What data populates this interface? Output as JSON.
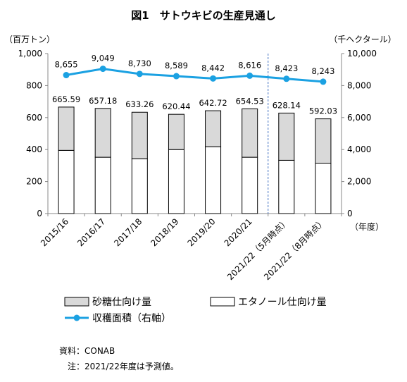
{
  "chart_data": {
    "type": "bar",
    "title": "図1　サトウキビの生産見通し",
    "left_axis_unit": "（百万トン）",
    "right_axis_unit": "（千ヘクタール）",
    "x_unit": "（年度）",
    "categories": [
      "2015/16",
      "2016/17",
      "2017/18",
      "2018/19",
      "2019/20",
      "2020/21",
      "2021/22（5月時点）",
      "2021/22（8月時点）"
    ],
    "left_ticks": [
      "0",
      "200",
      "400",
      "600",
      "800",
      "1,000"
    ],
    "right_ticks": [
      "0",
      "2,000",
      "4,000",
      "6,000",
      "8,000",
      "10,000"
    ],
    "ylim_left": [
      0,
      1000
    ],
    "ylim_right": [
      0,
      10000
    ],
    "stacked": true,
    "series": [
      {
        "name": "エタノール仕向け量",
        "axis": "left",
        "values": [
          395,
          352,
          343,
          400,
          418,
          352,
          333,
          315
        ],
        "color": "#ffffff"
      },
      {
        "name": "砂糖仕向け量",
        "axis": "left",
        "values": [
          270.59,
          305.18,
          290.26,
          220.44,
          224.72,
          302.53,
          295.14,
          277.03
        ],
        "color": "#d9d9d9"
      },
      {
        "name": "収穫面積（右軸）",
        "axis": "right",
        "type": "line",
        "values": [
          8655,
          9049,
          8730,
          8589,
          8442,
          8616,
          8423,
          8243
        ],
        "color": "#1ba1e2"
      }
    ],
    "total_labels": [
      "665.59",
      "657.18",
      "633.26",
      "620.44",
      "642.72",
      "654.53",
      "628.14",
      "592.03"
    ],
    "line_labels": [
      "8,655",
      "9,049",
      "8,730",
      "8,589",
      "8,442",
      "8,616",
      "8,423",
      "8,243"
    ],
    "legend": [
      "砂糖仕向け量",
      "エタノール仕向け量",
      "収穫面積（右軸）"
    ],
    "forecast_divider_after": "2020/21"
  },
  "source": "資料：CONAB",
  "note": "注：2021/22年度は予測値。"
}
